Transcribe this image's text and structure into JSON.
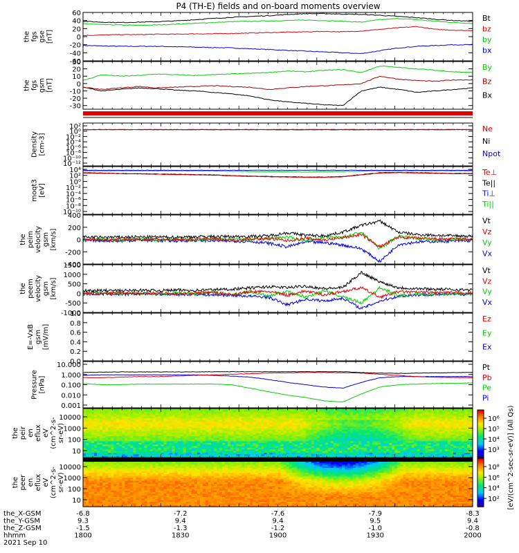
{
  "title": "P4 (TH-E) fields and on-board moments overview",
  "colors": {
    "black": "#000000",
    "red": "#e00000",
    "green": "#00d000",
    "blue": "#0000e0",
    "darkred": "#a00000",
    "axis": "#000000"
  },
  "chart_data": [
    {
      "id": "fgs",
      "type": "line",
      "ylabel": [
        "the",
        "fgs",
        "gse",
        "[nT]"
      ],
      "ylim": [
        -60,
        60
      ],
      "yticks": [
        60,
        40,
        20,
        0,
        -20,
        -40,
        -60
      ],
      "series": [
        {
          "name": "Bt",
          "color": "#000000",
          "values": [
            38,
            36,
            35,
            36,
            37,
            39,
            42,
            45,
            48,
            50,
            52,
            55,
            57,
            57,
            56,
            55,
            53,
            50,
            47,
            43,
            40,
            38
          ]
        },
        {
          "name": "bz",
          "color": "#e00000",
          "values": [
            3,
            4,
            5,
            5,
            6,
            6,
            7,
            7,
            8,
            9,
            10,
            11,
            12,
            13,
            12,
            14,
            18,
            22,
            25,
            18,
            16,
            15
          ]
        },
        {
          "name": "by",
          "color": "#00d000",
          "values": [
            32,
            30,
            29,
            28,
            29,
            31,
            33,
            35,
            37,
            38,
            39,
            40,
            41,
            40,
            38,
            36,
            42,
            45,
            42,
            38,
            35,
            33
          ]
        },
        {
          "name": "bx",
          "color": "#0000e0",
          "values": [
            -22,
            -23,
            -24,
            -24,
            -24,
            -25,
            -26,
            -27,
            -28,
            -30,
            -32,
            -34,
            -36,
            -38,
            -40,
            -42,
            -35,
            -28,
            -24,
            -22,
            -20,
            -20
          ]
        }
      ]
    },
    {
      "id": "fgs_gsm",
      "type": "line",
      "ylabel": [
        "the",
        "fgs",
        "gsm",
        "[nT]"
      ],
      "ylim": [
        -35,
        30
      ],
      "yticks": [
        30,
        20,
        10,
        0,
        -10,
        -20,
        -30
      ],
      "series": [
        {
          "name": "By",
          "color": "#00d000",
          "values": [
            4,
            12,
            10,
            11,
            13,
            12,
            11,
            12,
            13,
            14,
            15,
            17,
            16,
            18,
            19,
            15,
            24,
            22,
            20,
            18,
            16,
            15
          ]
        },
        {
          "name": "Bz",
          "color": "#a00000",
          "values": [
            -5,
            -8,
            -6,
            -4,
            -6,
            -5,
            -4,
            -3,
            -4,
            -5,
            -8,
            -6,
            -4,
            -3,
            -2,
            0,
            10,
            6,
            4,
            3,
            5,
            5
          ]
        },
        {
          "name": "Bx",
          "color": "#000000",
          "values": [
            -5,
            -10,
            -8,
            -6,
            -7,
            -9,
            -10,
            -12,
            -14,
            -17,
            -22,
            -25,
            -27,
            -29,
            -30,
            -10,
            -5,
            -8,
            -12,
            -10,
            -8,
            -6
          ]
        }
      ]
    },
    {
      "id": "density",
      "type": "line",
      "log": true,
      "ylabel": [
        "Density",
        "[cm-3]"
      ],
      "ylim_exp": [
        -13,
        3
      ],
      "ytick_labels": [
        "10²",
        "10⁰",
        "10⁻²",
        "10⁻⁴",
        "10⁻⁶",
        "10⁻⁸",
        "10⁻¹⁰",
        "10⁻¹²"
      ],
      "series": [
        {
          "name": "Ne",
          "color": "#e00000",
          "values_exp": [
            0.6,
            0.6,
            0.6,
            0.6,
            0.6,
            0.6,
            0.6,
            0.6,
            0.6,
            0.6,
            0.6,
            0.6,
            0.6,
            0.6,
            0.6,
            0.6,
            0.6,
            0.6,
            0.6,
            0.6,
            0.6,
            0.6
          ]
        },
        {
          "name": "Ni",
          "color": "#000000",
          "values_exp": [
            0.5,
            0.5,
            0.5,
            0.5,
            0.5,
            0.5,
            0.5,
            0.5,
            0.5,
            0.5,
            0.5,
            0.5,
            0.5,
            0.5,
            0.5,
            0.5,
            0.5,
            0.5,
            0.5,
            0.5,
            0.5,
            0.5
          ]
        },
        {
          "name": "Npot",
          "color": "#0000e0",
          "values_exp": []
        }
      ]
    },
    {
      "id": "temperature",
      "type": "line",
      "log": true,
      "ylabel": [
        "moqt3",
        "[eV]"
      ],
      "ylim_exp": [
        -11,
        4.5
      ],
      "ytick_labels": [
        "10⁴",
        "10²",
        "10⁰",
        "10⁻²",
        "10⁻⁴",
        "10⁻⁶",
        "10⁻⁸",
        "10⁻¹⁰"
      ],
      "series": [
        {
          "name": "Te⊥",
          "color": "#e00000",
          "values_exp": [
            2.4,
            2.3,
            2.2,
            2.1,
            2.0,
            1.9,
            1.8,
            1.7,
            1.5,
            1.3,
            1.2,
            1.1,
            1.0,
            1.0,
            1.2,
            1.8,
            2.4,
            2.5,
            2.4,
            2.3,
            2.2,
            2.2
          ]
        },
        {
          "name": "Te||",
          "color": "#000000",
          "values_exp": [
            2.5,
            2.4,
            2.3,
            2.2,
            2.1,
            2.0,
            1.9,
            1.8,
            1.6,
            1.4,
            1.3,
            1.2,
            1.1,
            1.1,
            1.3,
            1.9,
            2.5,
            2.6,
            2.5,
            2.4,
            2.3,
            2.3
          ]
        },
        {
          "name": "Ti⊥",
          "color": "#0000e0",
          "values_exp": [
            3.3,
            3.3,
            3.3,
            3.3,
            3.3,
            3.3,
            3.3,
            3.3,
            3.3,
            3.3,
            3.3,
            3.3,
            3.3,
            3.3,
            3.3,
            3.3,
            3.3,
            3.3,
            3.3,
            3.3,
            3.3,
            3.3
          ]
        },
        {
          "name": "Ti||",
          "color": "#00d000",
          "values_exp": [
            3.1,
            3.1,
            3.1,
            3.1,
            3.1,
            3.1,
            3.1,
            3.1,
            3.0,
            2.9,
            2.8,
            2.8,
            2.7,
            2.8,
            2.9,
            3.0,
            3.1,
            3.1,
            3.1,
            3.1,
            3.1,
            3.1
          ]
        }
      ]
    },
    {
      "id": "peim_velocity",
      "type": "line",
      "ylabel": [
        "the",
        "peim",
        "velocity",
        "gsm",
        "[km/s]"
      ],
      "ylim": [
        -400,
        400
      ],
      "yticks": [
        400,
        200,
        0,
        -200,
        -400
      ],
      "series": [
        {
          "name": "Vt",
          "color": "#000000",
          "values": [
            40,
            35,
            38,
            42,
            40,
            38,
            45,
            50,
            48,
            52,
            60,
            110,
            70,
            60,
            120,
            230,
            300,
            120,
            80,
            70,
            60,
            55
          ]
        },
        {
          "name": "Vz",
          "color": "#e00000",
          "values": [
            5,
            -10,
            8,
            -5,
            10,
            -8,
            5,
            10,
            -10,
            8,
            15,
            -20,
            20,
            -10,
            30,
            80,
            -120,
            40,
            20,
            10,
            5,
            8
          ]
        },
        {
          "name": "Vy",
          "color": "#00d000",
          "values": [
            -10,
            5,
            -8,
            10,
            -5,
            8,
            -10,
            5,
            10,
            -10,
            20,
            40,
            -20,
            30,
            40,
            120,
            -150,
            60,
            20,
            -10,
            10,
            -5
          ]
        },
        {
          "name": "Vx",
          "color": "#0000e0",
          "values": [
            -20,
            -15,
            -25,
            -10,
            -18,
            -22,
            -15,
            -20,
            -25,
            -30,
            -60,
            -120,
            -40,
            -50,
            -90,
            -150,
            -360,
            -80,
            -40,
            -30,
            -25,
            -20
          ]
        }
      ]
    },
    {
      "id": "peem_velocity",
      "type": "line",
      "ylabel": [
        "the",
        "peem",
        "velocity",
        "gsm",
        "[km/s]"
      ],
      "ylim": [
        -1000,
        1500
      ],
      "yticks": [
        1500,
        1000,
        500,
        0,
        -500,
        -1000
      ],
      "series": [
        {
          "name": "Vt",
          "color": "#000000",
          "values": [
            130,
            150,
            140,
            160,
            150,
            170,
            160,
            200,
            220,
            280,
            350,
            300,
            380,
            250,
            300,
            1100,
            600,
            300,
            250,
            220,
            200,
            180
          ]
        },
        {
          "name": "Vz",
          "color": "#e00000",
          "values": [
            20,
            -30,
            40,
            -20,
            30,
            -40,
            20,
            50,
            -60,
            80,
            100,
            -90,
            120,
            -80,
            100,
            300,
            -200,
            90,
            60,
            40,
            30,
            20
          ]
        },
        {
          "name": "Vy",
          "color": "#00d000",
          "values": [
            -30,
            40,
            -20,
            30,
            -40,
            20,
            -30,
            60,
            -80,
            100,
            -150,
            120,
            -200,
            150,
            -180,
            -500,
            300,
            -120,
            -60,
            -40,
            -30,
            -20
          ]
        },
        {
          "name": "Vx",
          "color": "#0000e0",
          "values": [
            -40,
            -30,
            -50,
            -30,
            -40,
            -60,
            -50,
            -80,
            -100,
            -150,
            -200,
            -600,
            -300,
            -400,
            -250,
            -800,
            -400,
            -150,
            -80,
            -60,
            -50,
            -40
          ]
        }
      ]
    },
    {
      "id": "efield",
      "type": "line",
      "ylabel": [
        "E=-VxB",
        "gsm",
        "[mV/m]"
      ],
      "ylim": [
        0,
        1
      ],
      "yticks_labels": [
        "1.0",
        "0.8",
        "0.6",
        "0.4",
        "0.2",
        "0.0"
      ],
      "series": [
        {
          "name": "Ez",
          "color": "#e00000",
          "values": []
        },
        {
          "name": "Ey",
          "color": "#00d000",
          "values": []
        },
        {
          "name": "Ex",
          "color": "#0000e0",
          "values": []
        }
      ]
    },
    {
      "id": "pressure",
      "type": "line",
      "log": true,
      "ylabel": [
        "Pressure",
        "[nPa]"
      ],
      "ylim_exp": [
        -3,
        1
      ],
      "ytick_labels": [
        "10.000",
        "1.000",
        "0.100",
        "0.010",
        "0.001"
      ],
      "series": [
        {
          "name": "Pt",
          "color": "#000000",
          "values_exp": [
            0.05,
            0.08,
            0.1,
            0.1,
            0.1,
            0.1,
            0.11,
            0.12,
            0.12,
            0.12,
            0.12,
            0.12,
            0.12,
            0.12,
            0.12,
            0.05,
            0.0,
            -0.02,
            0.0,
            0.02,
            0.04,
            0.05
          ]
        },
        {
          "name": "Pb",
          "color": "#e00000",
          "values_exp": [
            -0.4,
            -0.4,
            -0.35,
            -0.3,
            -0.3,
            -0.25,
            -0.2,
            -0.15,
            -0.1,
            -0.05,
            0.0,
            0.02,
            0.05,
            0.05,
            0.03,
            0.0,
            -0.1,
            -0.2,
            -0.3,
            -0.35,
            -0.38,
            -0.4
          ]
        },
        {
          "name": "Pe",
          "color": "#00d000",
          "values_exp": [
            -0.9,
            -1.0,
            -1.0,
            -0.95,
            -0.95,
            -0.95,
            -0.95,
            -0.95,
            -1.0,
            -1.3,
            -1.6,
            -1.9,
            -2.1,
            -2.4,
            -2.5,
            -1.8,
            -1.2,
            -1.0,
            -0.95,
            -0.9,
            -0.88,
            -0.85
          ]
        },
        {
          "name": "Pi",
          "color": "#0000e0",
          "values_exp": [
            -0.2,
            -0.15,
            -0.15,
            -0.15,
            -0.15,
            -0.15,
            -0.15,
            -0.2,
            -0.25,
            -0.35,
            -0.55,
            -0.8,
            -1.0,
            -1.2,
            -1.3,
            -0.8,
            -0.4,
            -0.3,
            -0.3,
            -0.3,
            -0.3,
            -0.3
          ]
        }
      ]
    },
    {
      "id": "peir_spec",
      "type": "heatmap",
      "ylabel": [
        "the",
        "peir",
        "en",
        "eflux",
        "eV",
        "(cm^2-s-",
        "sr-eV)"
      ],
      "ytick_labels": [
        "10000",
        "1000",
        "100",
        "10"
      ]
    },
    {
      "id": "peer_spec",
      "type": "heatmap",
      "ylabel": [
        "the",
        "peer",
        "en",
        "eflux",
        "eV",
        "(cm^2-s-",
        "sr-eV)"
      ],
      "ytick_labels": [
        "10000",
        "1000",
        "100",
        "10"
      ]
    }
  ],
  "colorbar": {
    "label": "[eV/(cm^2-sec-sr-eV)] (All Qs)",
    "upper_ticks": [
      "10⁶",
      "10⁵",
      "10⁴",
      "10³"
    ],
    "lower_ticks": [
      "10⁸",
      "10⁶",
      "10⁴",
      "10²"
    ]
  },
  "xaxis": {
    "rows": [
      {
        "label": "the_X-GSM",
        "values": [
          "-6.8",
          "-7.2",
          "-7.6",
          "-7.9",
          "-8.3"
        ]
      },
      {
        "label": "the_Y-GSM",
        "values": [
          "9.3",
          "9.4",
          "9.4",
          "9.5",
          "9.4"
        ]
      },
      {
        "label": "the_Z-GSM",
        "values": [
          "-1.5",
          "-1.3",
          "-1.2",
          "-1.0",
          "-0.8"
        ]
      },
      {
        "label": "hhmm",
        "values": [
          "1800",
          "1830",
          "1900",
          "1930",
          "2000"
        ]
      }
    ],
    "date": "2021 Sep 10"
  }
}
